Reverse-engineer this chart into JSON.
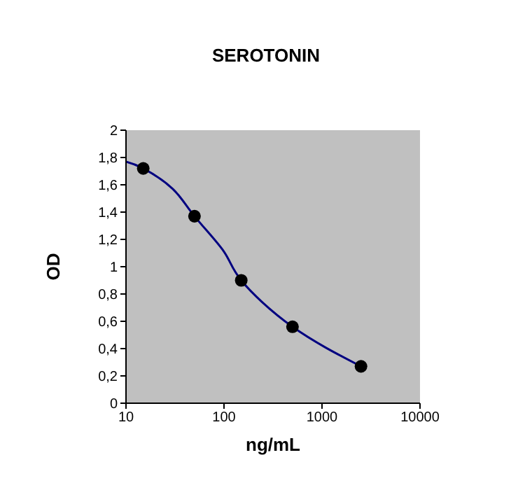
{
  "chart_data": {
    "type": "scatter",
    "title": "SEROTONIN",
    "xlabel": "ng/mL",
    "ylabel": "OD",
    "log": "x",
    "xlim": [
      10,
      10000
    ],
    "xticks": [
      10,
      100,
      1000,
      10000
    ],
    "ylim": [
      0,
      2
    ],
    "yticks": [
      0,
      {
        "value": 0.2,
        "label": "0,2"
      },
      {
        "value": 0.4,
        "label": "0,4"
      },
      {
        "value": 0.6,
        "label": "0,6"
      },
      {
        "value": 0.8,
        "label": "0,8"
      },
      1,
      {
        "value": 1.2,
        "label": "1,2"
      },
      {
        "value": 1.4,
        "label": "1,4"
      },
      {
        "value": 1.6,
        "label": "1,6"
      },
      {
        "value": 1.8,
        "label": "1,8"
      },
      2
    ],
    "grid": false,
    "marker": "circle",
    "series": [
      {
        "color": "#000000",
        "x": [
          15,
          50,
          150,
          500,
          2500
        ],
        "values": [
          1.72,
          1.37,
          0.9,
          0.56,
          0.27
        ]
      },
      {
        "type": "line",
        "color": "#000080",
        "marker": "none",
        "line_style": "solid",
        "x": [
          10,
          15,
          30,
          50,
          100,
          150,
          500,
          2500
        ],
        "values": [
          1.77,
          1.72,
          1.57,
          1.37,
          1.11,
          0.9,
          0.56,
          0.27
        ]
      }
    ]
  }
}
